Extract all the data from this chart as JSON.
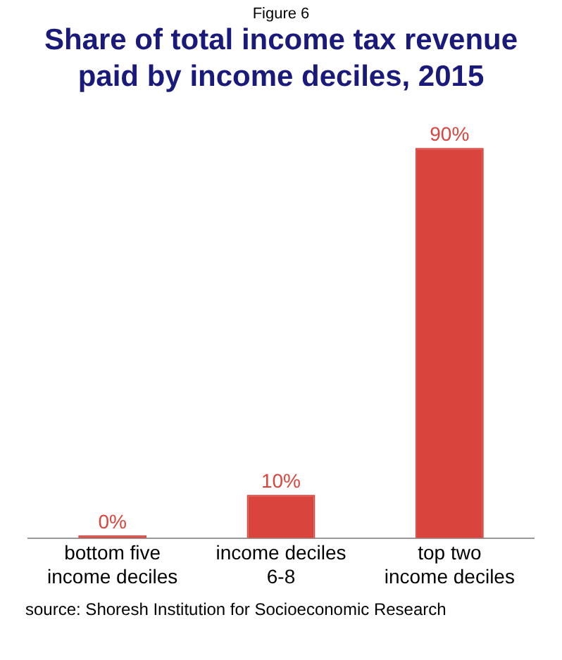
{
  "chart_data": {
    "type": "bar",
    "subtitle": "Figure 6",
    "title": "Share of total income tax revenue paid by income deciles, 2015",
    "categories": [
      "bottom five\nincome deciles",
      "income deciles\n6-8",
      "top two\nincome deciles"
    ],
    "values": [
      0,
      10,
      90
    ],
    "value_labels": [
      "0%",
      "10%",
      "90%"
    ],
    "color": "#d9453c",
    "grid": false,
    "legend": false,
    "annotations": [
      "source: Shoresh Institution for Socioeconomic Research"
    ]
  }
}
